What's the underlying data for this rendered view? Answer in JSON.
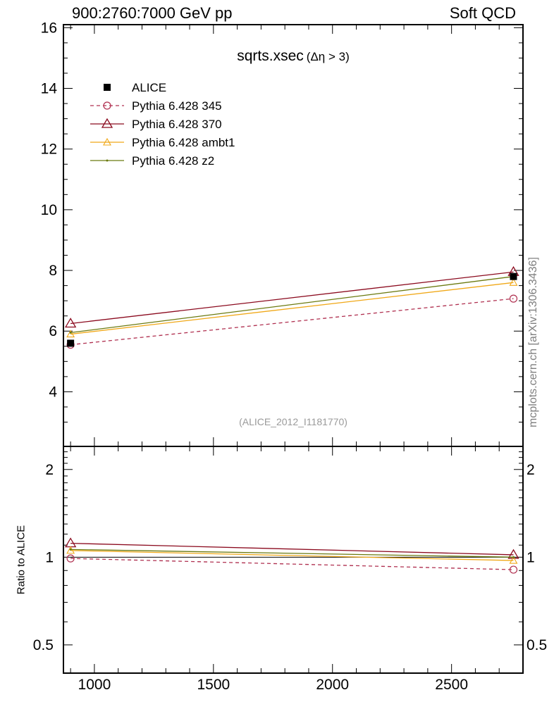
{
  "header": {
    "left": "900:2760:7000 GeV pp",
    "right": "Soft QCD"
  },
  "side_label": "mcplots.cern.ch [arXiv:1306.3436]",
  "colors": {
    "alice": "#000000",
    "p345": "#b03050",
    "p370": "#8b0a1e",
    "ambt1": "#f0a818",
    "z2": "#6b7a10"
  },
  "chart_data": [
    {
      "type": "line",
      "panel": "main",
      "title": "sqrts.xsec",
      "title_suffix": "(Δη > 3)",
      "watermark": "(ALICE_2012_I1181770)",
      "x": [
        900,
        2760
      ],
      "xlim": [
        870,
        2800
      ],
      "ylim": [
        2.2,
        16.1
      ],
      "yticks": [
        4,
        6,
        8,
        10,
        12,
        14,
        16
      ],
      "ytick_labels": [
        "4",
        "6",
        "8",
        "10",
        "12",
        "14",
        "16"
      ],
      "legend": [
        "ALICE",
        "Pythia 6.428 345",
        "Pythia 6.428 370",
        "Pythia 6.428 ambt1",
        "Pythia 6.428 z2"
      ],
      "series": [
        {
          "name": "ALICE",
          "values": [
            5.6,
            7.8
          ]
        },
        {
          "name": "Pythia 6.428 345",
          "values": [
            5.55,
            7.07
          ]
        },
        {
          "name": "Pythia 6.428 370",
          "values": [
            6.25,
            7.95
          ]
        },
        {
          "name": "Pythia 6.428 ambt1",
          "values": [
            5.9,
            7.6
          ]
        },
        {
          "name": "Pythia 6.428 z2",
          "values": [
            5.95,
            7.8
          ]
        }
      ]
    },
    {
      "type": "line",
      "panel": "ratio",
      "ylabel": "Ratio to ALICE",
      "x": [
        900,
        2760
      ],
      "xlim": [
        870,
        2800
      ],
      "ylim": [
        0.4,
        2.4
      ],
      "scale": "log",
      "yticks": [
        0.5,
        1,
        2
      ],
      "ytick_labels": [
        "0.5",
        "1",
        "2"
      ],
      "xticks": [
        1000,
        1500,
        2000,
        2500
      ],
      "xtick_labels": [
        "1000",
        "1500",
        "2000",
        "2500"
      ],
      "series": [
        {
          "name": "Pythia 6.428 345",
          "values": [
            0.99,
            0.906
          ]
        },
        {
          "name": "Pythia 6.428 370",
          "values": [
            1.116,
            1.019
          ]
        },
        {
          "name": "Pythia 6.428 ambt1",
          "values": [
            1.054,
            0.974
          ]
        },
        {
          "name": "Pythia 6.428 z2",
          "values": [
            1.063,
            1.0
          ]
        }
      ]
    }
  ]
}
